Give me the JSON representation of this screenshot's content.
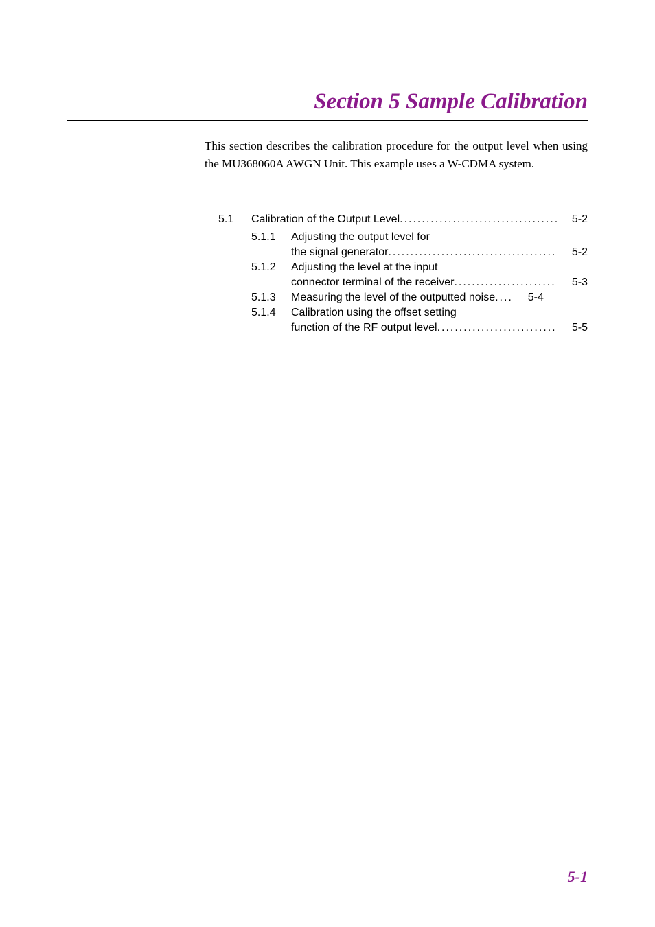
{
  "header": {
    "title": "Section 5    Sample Calibration",
    "title_color": "#8b1a8b",
    "title_fontsize": 33
  },
  "intro": {
    "text": "This section describes the calibration procedure for the output level when using the MU368060A AWGN Unit.   This example uses a W-CDMA system.",
    "fontsize": 17
  },
  "toc": {
    "main": {
      "number": "5.1",
      "title": "Calibration of the Output Level",
      "page": "5-2"
    },
    "subs": [
      {
        "number": "5.1.1",
        "title_line1": "Adjusting the output level for",
        "title_line2": "the signal generator ",
        "page": "5-2"
      },
      {
        "number": "5.1.2",
        "title_line1": "Adjusting the level at the input",
        "title_line2": "connector terminal of the receiver ",
        "page": "5-3"
      },
      {
        "number": "5.1.3",
        "title_line1": "Measuring the level of the outputted noise",
        "dots": "....",
        "page": "5-4"
      },
      {
        "number": "5.1.4",
        "title_line1": "Calibration using the offset setting",
        "title_line2": "function of the RF output level",
        "page": "5-5"
      }
    ],
    "dots_text": "..............................................................",
    "fontsize": 16
  },
  "footer": {
    "page_number": "5-1",
    "page_number_color": "#8b1a8b",
    "page_number_fontsize": 22
  },
  "colors": {
    "background": "#ffffff",
    "text": "#000000",
    "accent": "#8b1a8b",
    "line": "#000000"
  }
}
